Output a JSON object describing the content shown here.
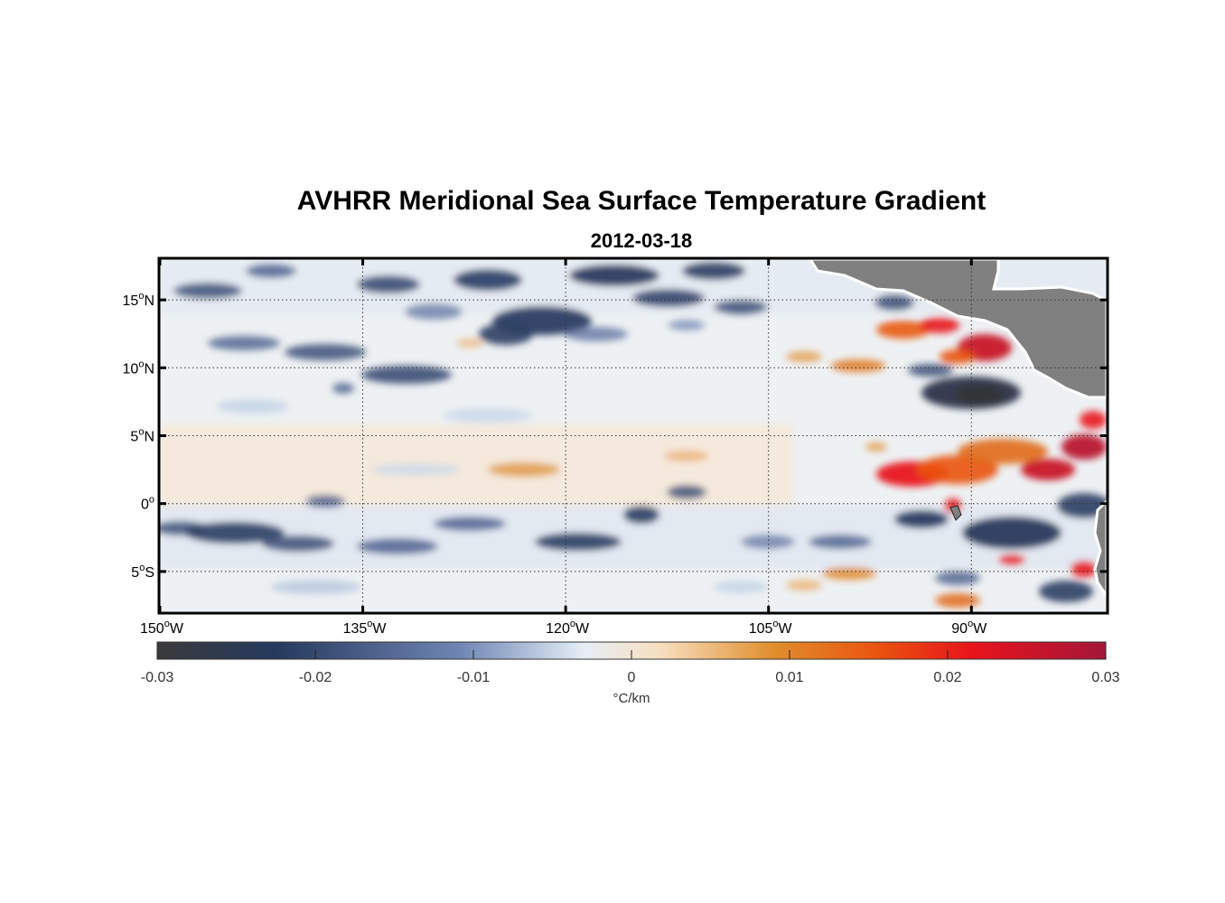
{
  "title": "AVHRR Meridional Sea Surface Temperature Gradient",
  "subtitle": "2012-03-18",
  "map": {
    "lon_ticks": [
      {
        "deg": "150",
        "hem": "W"
      },
      {
        "deg": "135",
        "hem": "W"
      },
      {
        "deg": "120",
        "hem": "W"
      },
      {
        "deg": "105",
        "hem": "W"
      },
      {
        "deg": "90",
        "hem": "W"
      }
    ],
    "lat_ticks": [
      {
        "deg": "15",
        "hem": "N"
      },
      {
        "deg": "10",
        "hem": "N"
      },
      {
        "deg": "5",
        "hem": "N"
      },
      {
        "deg": "0",
        "hem": ""
      },
      {
        "deg": "5",
        "hem": "S"
      }
    ],
    "land_color": "#808080",
    "grid": "dotted"
  },
  "colorbar": {
    "unit": "°C/km",
    "tick_labels": [
      "-0.03",
      "-0.02",
      "-0.01",
      "0",
      "0.01",
      "0.02",
      "0.03"
    ],
    "colors": [
      "#3a3a3c",
      "#263a5e",
      "#6f86b4",
      "#e6eef6",
      "#f7dfc0",
      "#e08e2c",
      "#e9530f",
      "#e8141c",
      "#a3163a"
    ]
  },
  "chart_data": {
    "type": "heatmap",
    "title": "AVHRR Meridional Sea Surface Temperature Gradient",
    "subtitle": "2012-03-18",
    "variable": "meridional SST gradient",
    "unit": "°C/km",
    "lon_range": [
      -150,
      -80
    ],
    "lat_range": [
      -8,
      18
    ],
    "color_range": [
      -0.03,
      0.03
    ],
    "features": [
      {
        "lon": -116,
        "lat": 13,
        "value": -0.02
      },
      {
        "lon": -133,
        "lat": 15,
        "value": -0.016
      },
      {
        "lon": -139,
        "lat": -1.5,
        "value": -0.018
      },
      {
        "lon": -91,
        "lat": 7.5,
        "value": -0.03
      },
      {
        "lon": -88,
        "lat": 12,
        "value": 0.025
      },
      {
        "lon": -92,
        "lat": 2,
        "value": 0.022
      },
      {
        "lon": -83,
        "lat": 3,
        "value": 0.022
      }
    ]
  }
}
